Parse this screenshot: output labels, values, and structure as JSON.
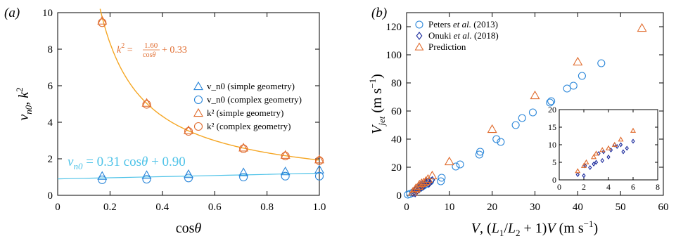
{
  "chart_data": [
    {
      "panel": "(a)",
      "type": "scatter",
      "xlabel": "cosθ",
      "ylabel": "v_n0, k²",
      "xlim": [
        0,
        1
      ],
      "ylim": [
        0,
        10
      ],
      "xticks": [
        "0",
        "0.2",
        "0.4",
        "0.6",
        "0.8",
        "1.0"
      ],
      "yticks": [
        "0",
        "2",
        "4",
        "6",
        "8",
        "10"
      ],
      "legend_position": "right",
      "annotations": [
        "k² = 1.60/cosθ + 0.33",
        "v_n0 = 0.31 cosθ + 0.90"
      ],
      "fits": [
        {
          "formula": "k^2 = 1.60/cosθ + 0.33",
          "color": "#f5a623"
        },
        {
          "formula": "v_n0 = 0.31 cosθ + 0.90",
          "color": "#4fc3e8"
        }
      ],
      "series": [
        {
          "name": "v_n0 (simple geometry)",
          "marker": "triangle",
          "color": "#2a86d9",
          "x": [
            0.17,
            0.34,
            0.5,
            0.71,
            0.87,
            1.0
          ],
          "y": [
            1.05,
            1.1,
            1.15,
            1.25,
            1.3,
            1.4
          ]
        },
        {
          "name": "v_n0 (complex geometry)",
          "marker": "circle",
          "color": "#2a86d9",
          "x": [
            0.17,
            0.34,
            0.5,
            0.71,
            0.87,
            1.0
          ],
          "y": [
            0.85,
            0.88,
            0.95,
            1.0,
            1.05,
            1.05
          ]
        },
        {
          "name": "k² (simple geometry)",
          "marker": "triangle",
          "color": "#e06b2d",
          "x": [
            0.17,
            0.34,
            0.5,
            0.71,
            0.87,
            1.0
          ],
          "y": [
            9.55,
            5.05,
            3.55,
            2.6,
            2.2,
            1.95
          ]
        },
        {
          "name": "k² (complex geometry)",
          "marker": "circle",
          "color": "#e06b2d",
          "x": [
            0.17,
            0.34,
            0.5,
            0.71,
            0.87,
            1.0
          ],
          "y": [
            9.45,
            4.98,
            3.5,
            2.55,
            2.15,
            1.9
          ]
        }
      ]
    },
    {
      "panel": "(b)",
      "type": "scatter",
      "xlabel": "V, (L1/L2 + 1)V (m s⁻¹)",
      "ylabel": "V_jet (m s⁻¹)",
      "xlim": [
        0,
        60
      ],
      "ylim": [
        0,
        130
      ],
      "xticks": [
        "0",
        "10",
        "20",
        "30",
        "40",
        "50",
        "60"
      ],
      "yticks": [
        "0",
        "20",
        "40",
        "60",
        "80",
        "100",
        "120"
      ],
      "legend_position": "top-left",
      "series": [
        {
          "name": "Peters et al. (2013)",
          "marker": "circle",
          "color": "#2a86d9",
          "x": [
            0.3,
            0.8,
            1.5,
            2,
            2.5,
            3,
            3.5,
            4,
            4.5,
            5,
            5.5,
            8,
            8.2,
            11.5,
            12.5,
            17,
            17.2,
            21,
            22,
            25.5,
            27,
            29.5,
            33.5,
            33.8,
            37.5,
            39,
            41,
            45.5
          ],
          "y": [
            0.5,
            1,
            2,
            3,
            4,
            5,
            6,
            7,
            8,
            9,
            10,
            10,
            12.5,
            20.5,
            22,
            29,
            31,
            40,
            38,
            50,
            55,
            59,
            66,
            67,
            76,
            78,
            85,
            94
          ]
        },
        {
          "name": "Onuki et al. (2018)",
          "marker": "diamond",
          "color": "#1a2a9c",
          "x": [
            1.5,
            2.0,
            2.1,
            2.5,
            2.8,
            3.0,
            3.2,
            3.5,
            3.6,
            4.0,
            4.2,
            4.5,
            4.7,
            5.0,
            5.2,
            5.5,
            6.0
          ],
          "y": [
            1.5,
            1.2,
            4.0,
            3.5,
            4.5,
            5.0,
            7.5,
            5.5,
            8.0,
            6.5,
            8.5,
            10.0,
            9.5,
            10.0,
            8.0,
            9.0,
            11.0
          ]
        },
        {
          "name": "Prediction",
          "marker": "triangle",
          "color": "#e06b2d",
          "x": [
            1.5,
            2.0,
            2.2,
            2.8,
            3.0,
            3.5,
            4.0,
            4.5,
            5.0,
            6.0,
            10,
            20,
            30,
            40,
            55
          ],
          "y": [
            2.5,
            4.0,
            5.0,
            6.5,
            7.5,
            8.5,
            9.0,
            10.0,
            11.5,
            14.0,
            24,
            47,
            71,
            95,
            119
          ]
        }
      ],
      "inset": {
        "xlim": [
          0,
          8
        ],
        "ylim": [
          0,
          20
        ],
        "xticks": [
          "0",
          "2",
          "4",
          "6",
          "8"
        ],
        "yticks": [
          "0",
          "5",
          "10",
          "15",
          "20"
        ]
      }
    }
  ]
}
